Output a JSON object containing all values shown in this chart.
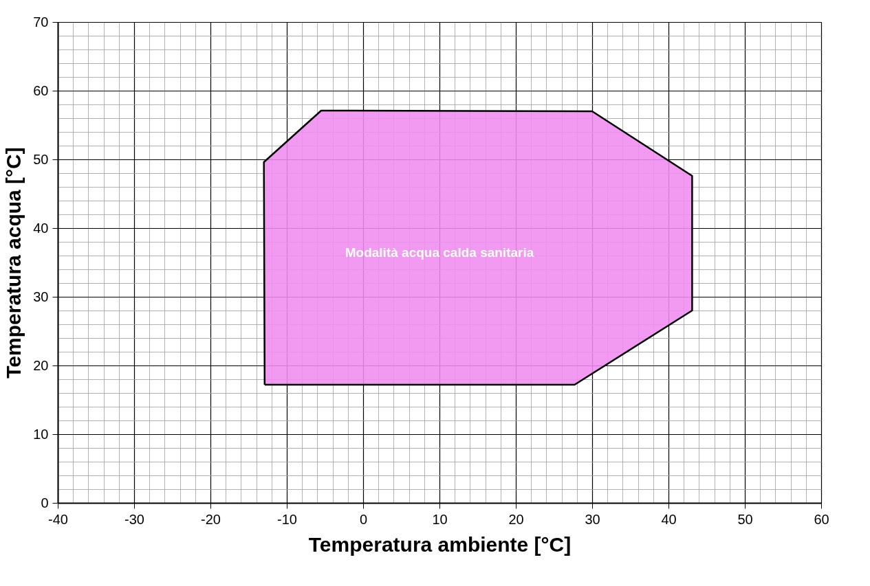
{
  "chart_data": {
    "type": "area",
    "xlabel": "Temperatura ambiente [°C]",
    "ylabel": "Temperatura acqua [°C]",
    "series": [
      {
        "color": "#f08cf0",
        "x": [
          -12.9,
          -13,
          -5.5,
          30,
          43.1,
          43.1,
          27.7,
          -12.9
        ],
        "values": [
          17.2,
          49.6,
          57.1,
          57.0,
          47.6,
          28.0,
          17.2,
          17.2
        ]
      }
    ],
    "xlim": [
      -40,
      60
    ],
    "ylim": [
      0,
      70
    ],
    "xticks": [
      -40,
      {
        "value": -38,
        "label": null
      },
      {
        "value": -36,
        "label": null
      },
      {
        "value": -34,
        "label": null
      },
      {
        "value": -32,
        "label": null
      },
      -30,
      {
        "value": -28,
        "label": null
      },
      {
        "value": -26,
        "label": null
      },
      {
        "value": -24,
        "label": null
      },
      {
        "value": -22,
        "label": null
      },
      -20,
      {
        "value": -18,
        "label": null
      },
      {
        "value": -16,
        "label": null
      },
      {
        "value": -14,
        "label": null
      },
      {
        "value": -12,
        "label": null
      },
      -10,
      {
        "value": -8,
        "label": null
      },
      {
        "value": -6,
        "label": null
      },
      {
        "value": -4,
        "label": null
      },
      {
        "value": -2,
        "label": null
      },
      0,
      {
        "value": 2,
        "label": null
      },
      {
        "value": 4,
        "label": null
      },
      {
        "value": 6,
        "label": null
      },
      {
        "value": 8,
        "label": null
      },
      10,
      {
        "value": 12,
        "label": null
      },
      {
        "value": 14,
        "label": null
      },
      {
        "value": 16,
        "label": null
      },
      {
        "value": 18,
        "label": null
      },
      20,
      {
        "value": 22,
        "label": null
      },
      {
        "value": 24,
        "label": null
      },
      {
        "value": 26,
        "label": null
      },
      {
        "value": 28,
        "label": null
      },
      30,
      {
        "value": 32,
        "label": null
      },
      {
        "value": 34,
        "label": null
      },
      {
        "value": 36,
        "label": null
      },
      {
        "value": 38,
        "label": null
      },
      40,
      {
        "value": 42,
        "label": null
      },
      {
        "value": 44,
        "label": null
      },
      {
        "value": 46,
        "label": null
      },
      {
        "value": 48,
        "label": null
      },
      50,
      {
        "value": 52,
        "label": null
      },
      {
        "value": 54,
        "label": null
      },
      {
        "value": 56,
        "label": null
      },
      {
        "value": 58,
        "label": null
      },
      60
    ],
    "yticks": [
      0,
      {
        "value": 2,
        "label": null
      },
      {
        "value": 4,
        "label": null
      },
      {
        "value": 6,
        "label": null
      },
      {
        "value": 8,
        "label": null
      },
      10,
      {
        "value": 12,
        "label": null
      },
      {
        "value": 14,
        "label": null
      },
      {
        "value": 16,
        "label": null
      },
      {
        "value": 18,
        "label": null
      },
      20,
      {
        "value": 22,
        "label": null
      },
      {
        "value": 24,
        "label": null
      },
      {
        "value": 26,
        "label": null
      },
      {
        "value": 28,
        "label": null
      },
      30,
      {
        "value": 32,
        "label": null
      },
      {
        "value": 34,
        "label": null
      },
      {
        "value": 36,
        "label": null
      },
      {
        "value": 38,
        "label": null
      },
      40,
      {
        "value": 42,
        "label": null
      },
      {
        "value": 44,
        "label": null
      },
      {
        "value": 46,
        "label": null
      },
      {
        "value": 48,
        "label": null
      },
      50,
      {
        "value": 52,
        "label": null
      },
      {
        "value": 54,
        "label": null
      },
      {
        "value": 56,
        "label": null
      },
      {
        "value": 58,
        "label": null
      },
      60,
      {
        "value": 62,
        "label": null
      },
      {
        "value": 64,
        "label": null
      },
      {
        "value": 66,
        "label": null
      },
      {
        "value": 68,
        "label": null
      },
      70
    ],
    "grid": true,
    "annotations": [
      "Modalità acqua calda sanitaria"
    ]
  }
}
